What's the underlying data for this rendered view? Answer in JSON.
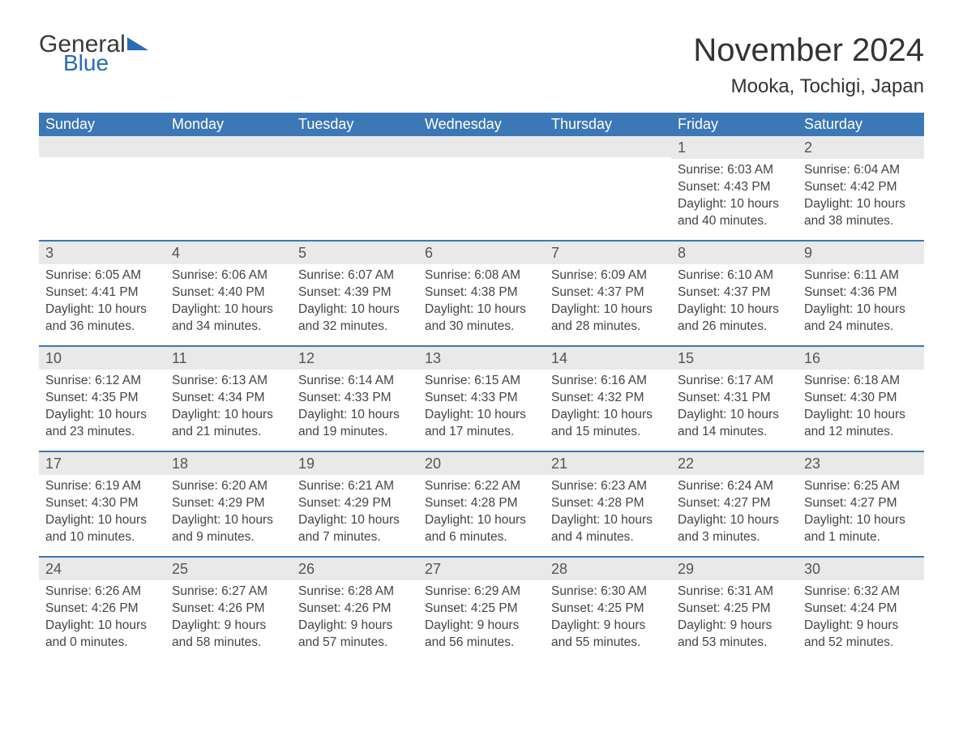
{
  "brand": {
    "line1": "General",
    "line2": "Blue",
    "brand_color": "#2b6cb0",
    "text_color": "#3a3a3a"
  },
  "title": "November 2024",
  "location": "Mooka, Tochigi, Japan",
  "colors": {
    "header_bg": "#3b78b5",
    "header_text": "#ffffff",
    "daynum_bg": "#e9e9e9",
    "week_border": "#3b78b5",
    "body_text": "#444444",
    "page_bg": "#ffffff"
  },
  "day_names": [
    "Sunday",
    "Monday",
    "Tuesday",
    "Wednesday",
    "Thursday",
    "Friday",
    "Saturday"
  ],
  "weeks": [
    [
      {
        "empty": true
      },
      {
        "empty": true
      },
      {
        "empty": true
      },
      {
        "empty": true
      },
      {
        "empty": true
      },
      {
        "day": "1",
        "sunrise": "Sunrise: 6:03 AM",
        "sunset": "Sunset: 4:43 PM",
        "daylight": "Daylight: 10 hours and 40 minutes."
      },
      {
        "day": "2",
        "sunrise": "Sunrise: 6:04 AM",
        "sunset": "Sunset: 4:42 PM",
        "daylight": "Daylight: 10 hours and 38 minutes."
      }
    ],
    [
      {
        "day": "3",
        "sunrise": "Sunrise: 6:05 AM",
        "sunset": "Sunset: 4:41 PM",
        "daylight": "Daylight: 10 hours and 36 minutes."
      },
      {
        "day": "4",
        "sunrise": "Sunrise: 6:06 AM",
        "sunset": "Sunset: 4:40 PM",
        "daylight": "Daylight: 10 hours and 34 minutes."
      },
      {
        "day": "5",
        "sunrise": "Sunrise: 6:07 AM",
        "sunset": "Sunset: 4:39 PM",
        "daylight": "Daylight: 10 hours and 32 minutes."
      },
      {
        "day": "6",
        "sunrise": "Sunrise: 6:08 AM",
        "sunset": "Sunset: 4:38 PM",
        "daylight": "Daylight: 10 hours and 30 minutes."
      },
      {
        "day": "7",
        "sunrise": "Sunrise: 6:09 AM",
        "sunset": "Sunset: 4:37 PM",
        "daylight": "Daylight: 10 hours and 28 minutes."
      },
      {
        "day": "8",
        "sunrise": "Sunrise: 6:10 AM",
        "sunset": "Sunset: 4:37 PM",
        "daylight": "Daylight: 10 hours and 26 minutes."
      },
      {
        "day": "9",
        "sunrise": "Sunrise: 6:11 AM",
        "sunset": "Sunset: 4:36 PM",
        "daylight": "Daylight: 10 hours and 24 minutes."
      }
    ],
    [
      {
        "day": "10",
        "sunrise": "Sunrise: 6:12 AM",
        "sunset": "Sunset: 4:35 PM",
        "daylight": "Daylight: 10 hours and 23 minutes."
      },
      {
        "day": "11",
        "sunrise": "Sunrise: 6:13 AM",
        "sunset": "Sunset: 4:34 PM",
        "daylight": "Daylight: 10 hours and 21 minutes."
      },
      {
        "day": "12",
        "sunrise": "Sunrise: 6:14 AM",
        "sunset": "Sunset: 4:33 PM",
        "daylight": "Daylight: 10 hours and 19 minutes."
      },
      {
        "day": "13",
        "sunrise": "Sunrise: 6:15 AM",
        "sunset": "Sunset: 4:33 PM",
        "daylight": "Daylight: 10 hours and 17 minutes."
      },
      {
        "day": "14",
        "sunrise": "Sunrise: 6:16 AM",
        "sunset": "Sunset: 4:32 PM",
        "daylight": "Daylight: 10 hours and 15 minutes."
      },
      {
        "day": "15",
        "sunrise": "Sunrise: 6:17 AM",
        "sunset": "Sunset: 4:31 PM",
        "daylight": "Daylight: 10 hours and 14 minutes."
      },
      {
        "day": "16",
        "sunrise": "Sunrise: 6:18 AM",
        "sunset": "Sunset: 4:30 PM",
        "daylight": "Daylight: 10 hours and 12 minutes."
      }
    ],
    [
      {
        "day": "17",
        "sunrise": "Sunrise: 6:19 AM",
        "sunset": "Sunset: 4:30 PM",
        "daylight": "Daylight: 10 hours and 10 minutes."
      },
      {
        "day": "18",
        "sunrise": "Sunrise: 6:20 AM",
        "sunset": "Sunset: 4:29 PM",
        "daylight": "Daylight: 10 hours and 9 minutes."
      },
      {
        "day": "19",
        "sunrise": "Sunrise: 6:21 AM",
        "sunset": "Sunset: 4:29 PM",
        "daylight": "Daylight: 10 hours and 7 minutes."
      },
      {
        "day": "20",
        "sunrise": "Sunrise: 6:22 AM",
        "sunset": "Sunset: 4:28 PM",
        "daylight": "Daylight: 10 hours and 6 minutes."
      },
      {
        "day": "21",
        "sunrise": "Sunrise: 6:23 AM",
        "sunset": "Sunset: 4:28 PM",
        "daylight": "Daylight: 10 hours and 4 minutes."
      },
      {
        "day": "22",
        "sunrise": "Sunrise: 6:24 AM",
        "sunset": "Sunset: 4:27 PM",
        "daylight": "Daylight: 10 hours and 3 minutes."
      },
      {
        "day": "23",
        "sunrise": "Sunrise: 6:25 AM",
        "sunset": "Sunset: 4:27 PM",
        "daylight": "Daylight: 10 hours and 1 minute."
      }
    ],
    [
      {
        "day": "24",
        "sunrise": "Sunrise: 6:26 AM",
        "sunset": "Sunset: 4:26 PM",
        "daylight": "Daylight: 10 hours and 0 minutes."
      },
      {
        "day": "25",
        "sunrise": "Sunrise: 6:27 AM",
        "sunset": "Sunset: 4:26 PM",
        "daylight": "Daylight: 9 hours and 58 minutes."
      },
      {
        "day": "26",
        "sunrise": "Sunrise: 6:28 AM",
        "sunset": "Sunset: 4:26 PM",
        "daylight": "Daylight: 9 hours and 57 minutes."
      },
      {
        "day": "27",
        "sunrise": "Sunrise: 6:29 AM",
        "sunset": "Sunset: 4:25 PM",
        "daylight": "Daylight: 9 hours and 56 minutes."
      },
      {
        "day": "28",
        "sunrise": "Sunrise: 6:30 AM",
        "sunset": "Sunset: 4:25 PM",
        "daylight": "Daylight: 9 hours and 55 minutes."
      },
      {
        "day": "29",
        "sunrise": "Sunrise: 6:31 AM",
        "sunset": "Sunset: 4:25 PM",
        "daylight": "Daylight: 9 hours and 53 minutes."
      },
      {
        "day": "30",
        "sunrise": "Sunrise: 6:32 AM",
        "sunset": "Sunset: 4:24 PM",
        "daylight": "Daylight: 9 hours and 52 minutes."
      }
    ]
  ]
}
